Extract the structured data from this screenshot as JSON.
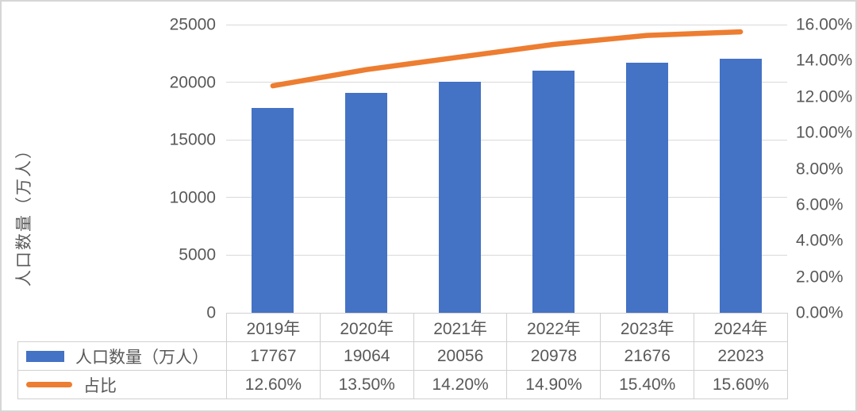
{
  "chart_data": {
    "type": "combo-bar-line",
    "categories": [
      "2019年",
      "2020年",
      "2021年",
      "2022年",
      "2023年",
      "2024年"
    ],
    "series": [
      {
        "name": "人口数量（万人）",
        "type": "bar",
        "axis": "left",
        "color": "#4472C4",
        "values": [
          17767,
          19064,
          20056,
          20978,
          21676,
          22023
        ],
        "display": [
          "17767",
          "19064",
          "20056",
          "20978",
          "21676",
          "22023"
        ]
      },
      {
        "name": "占比",
        "type": "line",
        "axis": "right",
        "color": "#ED7D31",
        "values": [
          12.6,
          13.5,
          14.2,
          14.9,
          15.4,
          15.6
        ],
        "display": [
          "12.60%",
          "13.50%",
          "14.20%",
          "14.90%",
          "15.40%",
          "15.60%"
        ]
      }
    ],
    "left_axis": {
      "title": "人口数量（万人）",
      "min": 0,
      "max": 25000,
      "step": 5000,
      "tick_labels": [
        "25000",
        "20000",
        "15000",
        "10000",
        "5000",
        "0"
      ]
    },
    "right_axis": {
      "min": 0,
      "max": 16,
      "step": 2,
      "tick_labels": [
        "16.00%",
        "14.00%",
        "12.00%",
        "10.00%",
        "8.00%",
        "6.00%",
        "4.00%",
        "2.00%",
        "0.00%"
      ]
    },
    "grid": "horizontal-major",
    "legend_position": "data-table-left"
  },
  "colors": {
    "bar": "#4472C4",
    "line": "#ED7D31",
    "gridline": "#D9D9D9",
    "axis_text": "#595959",
    "table_border": "#D0D0D0",
    "frame_border": "#D6D6D6",
    "background": "#FFFFFF"
  }
}
